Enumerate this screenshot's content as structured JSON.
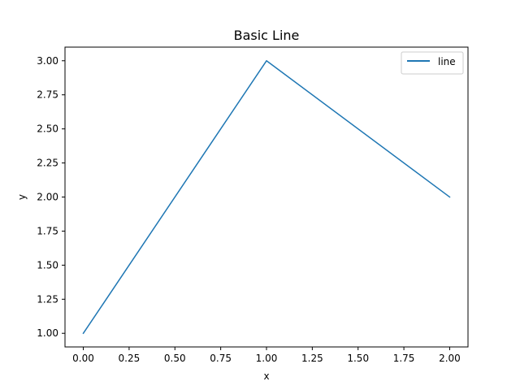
{
  "chart_data": {
    "type": "line",
    "title": "Basic Line",
    "xlabel": "x",
    "ylabel": "y",
    "xlim": [
      -0.1,
      2.1
    ],
    "ylim": [
      0.9,
      3.1
    ],
    "x_ticks": [
      0.0,
      0.25,
      0.5,
      0.75,
      1.0,
      1.25,
      1.5,
      1.75,
      2.0
    ],
    "x_tick_labels": [
      "0.00",
      "0.25",
      "0.50",
      "0.75",
      "1.00",
      "1.25",
      "1.50",
      "1.75",
      "2.00"
    ],
    "y_ticks": [
      1.0,
      1.25,
      1.5,
      1.75,
      2.0,
      2.25,
      2.5,
      2.75,
      3.0
    ],
    "y_tick_labels": [
      "1.00",
      "1.25",
      "1.50",
      "1.75",
      "2.00",
      "2.25",
      "2.50",
      "2.75",
      "3.00"
    ],
    "grid": false,
    "legend_position": "top-right",
    "series": [
      {
        "name": "line",
        "color": "#1f77b4",
        "x": [
          0,
          1,
          2
        ],
        "y": [
          1,
          3,
          2
        ]
      }
    ]
  }
}
